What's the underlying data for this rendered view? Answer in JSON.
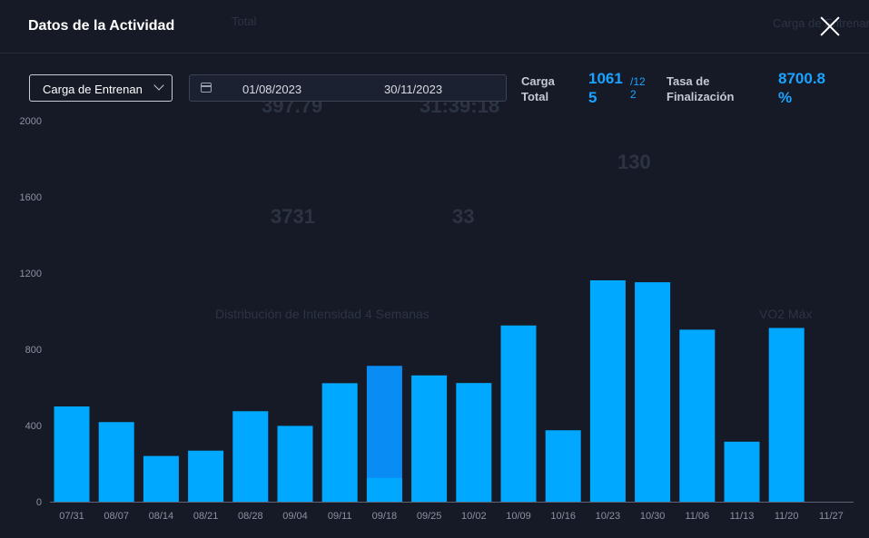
{
  "header": {
    "title": "Datos de la Actividad"
  },
  "filters": {
    "metric_select": "Carga de Entrenan",
    "date_start": "01/08/2023",
    "date_end": "30/11/2023"
  },
  "stats": {
    "total_load_label_1": "Carga",
    "total_load_label_2": "Total",
    "total_load_value_1": "1061",
    "total_load_value_2": "5",
    "total_load_sub_1": "/12",
    "total_load_sub_2": "2",
    "completion_label_1": "Tasa de",
    "completion_label_2": "Finalización",
    "completion_value_1": "8700.8",
    "completion_value_2": "%"
  },
  "background_text": {
    "t1": "Total",
    "t2": "Carga de Entrenamiento",
    "t3": "397.79",
    "t4": "31:39:18",
    "t5": "130",
    "t6": "3731",
    "t7": "33",
    "t8": "Distribución de Intensidad 4 Semanas",
    "t9": "VO2 Máx"
  },
  "colors": {
    "bar": "#00a8ff",
    "bar_highlight": "#0a8cf5",
    "accent": "#1aa3ff"
  },
  "chart_data": {
    "type": "bar",
    "categories": [
      "07/31",
      "08/07",
      "08/14",
      "08/21",
      "08/28",
      "09/04",
      "09/11",
      "09/18",
      "09/25",
      "10/02",
      "10/09",
      "10/16",
      "10/23",
      "10/30",
      "11/06",
      "11/13",
      "11/20",
      "11/27"
    ],
    "values": [
      500,
      418,
      240,
      268,
      475,
      398,
      622,
      713,
      663,
      623,
      925,
      375,
      1162,
      1152,
      903,
      315,
      912,
      0
    ],
    "highlight_index": 7,
    "highlight_inner_value": 125,
    "yticks": [
      0,
      400,
      800,
      1200,
      1600,
      2000
    ],
    "ylim": [
      0,
      2000
    ],
    "grid": false,
    "title": "",
    "xlabel": "",
    "ylabel": ""
  }
}
